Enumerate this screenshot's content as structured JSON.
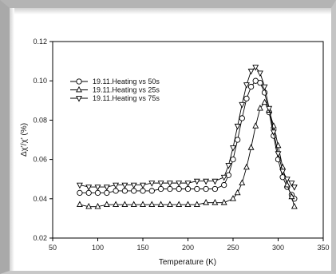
{
  "chart_data": {
    "type": "scatter",
    "title": "",
    "xlabel": "Temperature (K)",
    "ylabel": "Δχ'/χ' (%)",
    "xlim": [
      50,
      350
    ],
    "ylim": [
      0.02,
      0.12
    ],
    "xticks": [
      "50",
      "100",
      "150",
      "200",
      "250",
      "300",
      "350"
    ],
    "yticks": [
      "0.02",
      "0.04",
      "0.06",
      "0.08",
      "0.10",
      "0.12"
    ],
    "grid": false,
    "legend_position": "top-left",
    "series": [
      {
        "name": "19.11.Heating vs 50s",
        "marker": "circle",
        "x": [
          80,
          90,
          100,
          110,
          120,
          130,
          140,
          150,
          160,
          170,
          180,
          190,
          200,
          210,
          220,
          230,
          240,
          245,
          250,
          255,
          260,
          265,
          270,
          275,
          280,
          285,
          290,
          295,
          300,
          305,
          310,
          315,
          318
        ],
        "y": [
          0.043,
          0.043,
          0.043,
          0.043,
          0.044,
          0.044,
          0.044,
          0.044,
          0.044,
          0.045,
          0.045,
          0.045,
          0.045,
          0.045,
          0.045,
          0.045,
          0.047,
          0.052,
          0.06,
          0.07,
          0.081,
          0.091,
          0.097,
          0.1,
          0.099,
          0.094,
          0.084,
          0.072,
          0.06,
          0.051,
          0.046,
          0.042,
          0.04
        ]
      },
      {
        "name": "19.11.Heating vs 25s",
        "marker": "triangle-up",
        "x": [
          80,
          90,
          100,
          110,
          120,
          130,
          140,
          150,
          160,
          170,
          180,
          190,
          200,
          210,
          220,
          230,
          240,
          250,
          255,
          260,
          265,
          270,
          275,
          280,
          285,
          290,
          295,
          300,
          305,
          310,
          315,
          318
        ],
        "y": [
          0.037,
          0.036,
          0.036,
          0.037,
          0.037,
          0.037,
          0.037,
          0.037,
          0.037,
          0.037,
          0.037,
          0.037,
          0.037,
          0.037,
          0.038,
          0.038,
          0.038,
          0.04,
          0.043,
          0.048,
          0.056,
          0.066,
          0.077,
          0.086,
          0.089,
          0.085,
          0.077,
          0.067,
          0.056,
          0.047,
          0.041,
          0.036
        ]
      },
      {
        "name": "19.11.Heating vs 75s",
        "marker": "triangle-down",
        "x": [
          80,
          90,
          100,
          110,
          120,
          130,
          140,
          150,
          160,
          170,
          180,
          190,
          200,
          210,
          220,
          230,
          240,
          245,
          250,
          255,
          260,
          265,
          270,
          275,
          280,
          285,
          290,
          295,
          300,
          305,
          310,
          315,
          318
        ],
        "y": [
          0.047,
          0.046,
          0.046,
          0.046,
          0.047,
          0.047,
          0.047,
          0.047,
          0.048,
          0.048,
          0.048,
          0.048,
          0.048,
          0.049,
          0.049,
          0.049,
          0.051,
          0.057,
          0.066,
          0.077,
          0.088,
          0.098,
          0.105,
          0.107,
          0.104,
          0.097,
          0.086,
          0.074,
          0.063,
          0.054,
          0.05,
          0.048,
          0.046
        ]
      }
    ]
  }
}
